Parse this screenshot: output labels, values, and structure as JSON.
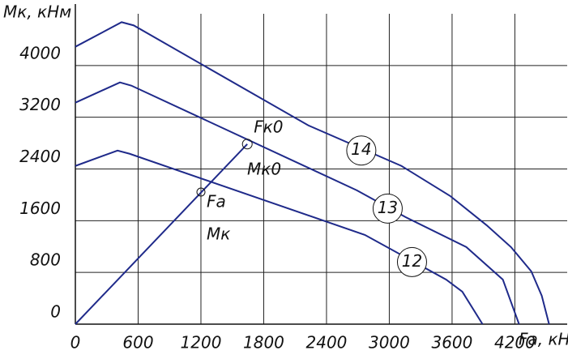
{
  "chart_data": {
    "type": "line",
    "y_label": "Mк, кНм",
    "x_label": "Fа, кН",
    "xlim": [
      0,
      4700
    ],
    "ylim": [
      0,
      4800
    ],
    "xticks": [
      0,
      600,
      1200,
      1800,
      2400,
      3000,
      3600,
      4200
    ],
    "yticks": [
      0,
      800,
      1600,
      2400,
      3200,
      4000
    ],
    "grid": true,
    "color": "#1f2a8a",
    "series": [
      {
        "name": "14",
        "x": [
          0,
          442,
          558,
          2225,
          3116,
          3581,
          3930,
          4163,
          4357,
          4457,
          4527
        ],
        "values": [
          4290,
          4670,
          4620,
          3075,
          2447,
          1983,
          1530,
          1192,
          816,
          439,
          0
        ]
      },
      {
        "name": "13",
        "x": [
          0,
          426,
          535,
          2690,
          3155,
          3736,
          4085,
          4240
        ],
        "values": [
          3425,
          3739,
          3689,
          2070,
          1656,
          1192,
          690,
          0
        ]
      },
      {
        "name": "12",
        "x": [
          0,
          403,
          519,
          2767,
          3543,
          3698,
          3891
        ],
        "values": [
          2447,
          2685,
          2635,
          1380,
          690,
          502,
          0
        ]
      },
      {
        "name": "Fк0",
        "x": [
          0,
          1643
        ],
        "values": [
          0,
          2785
        ]
      }
    ],
    "annotations": [
      "Mк0",
      "Fа",
      "Mк"
    ]
  }
}
